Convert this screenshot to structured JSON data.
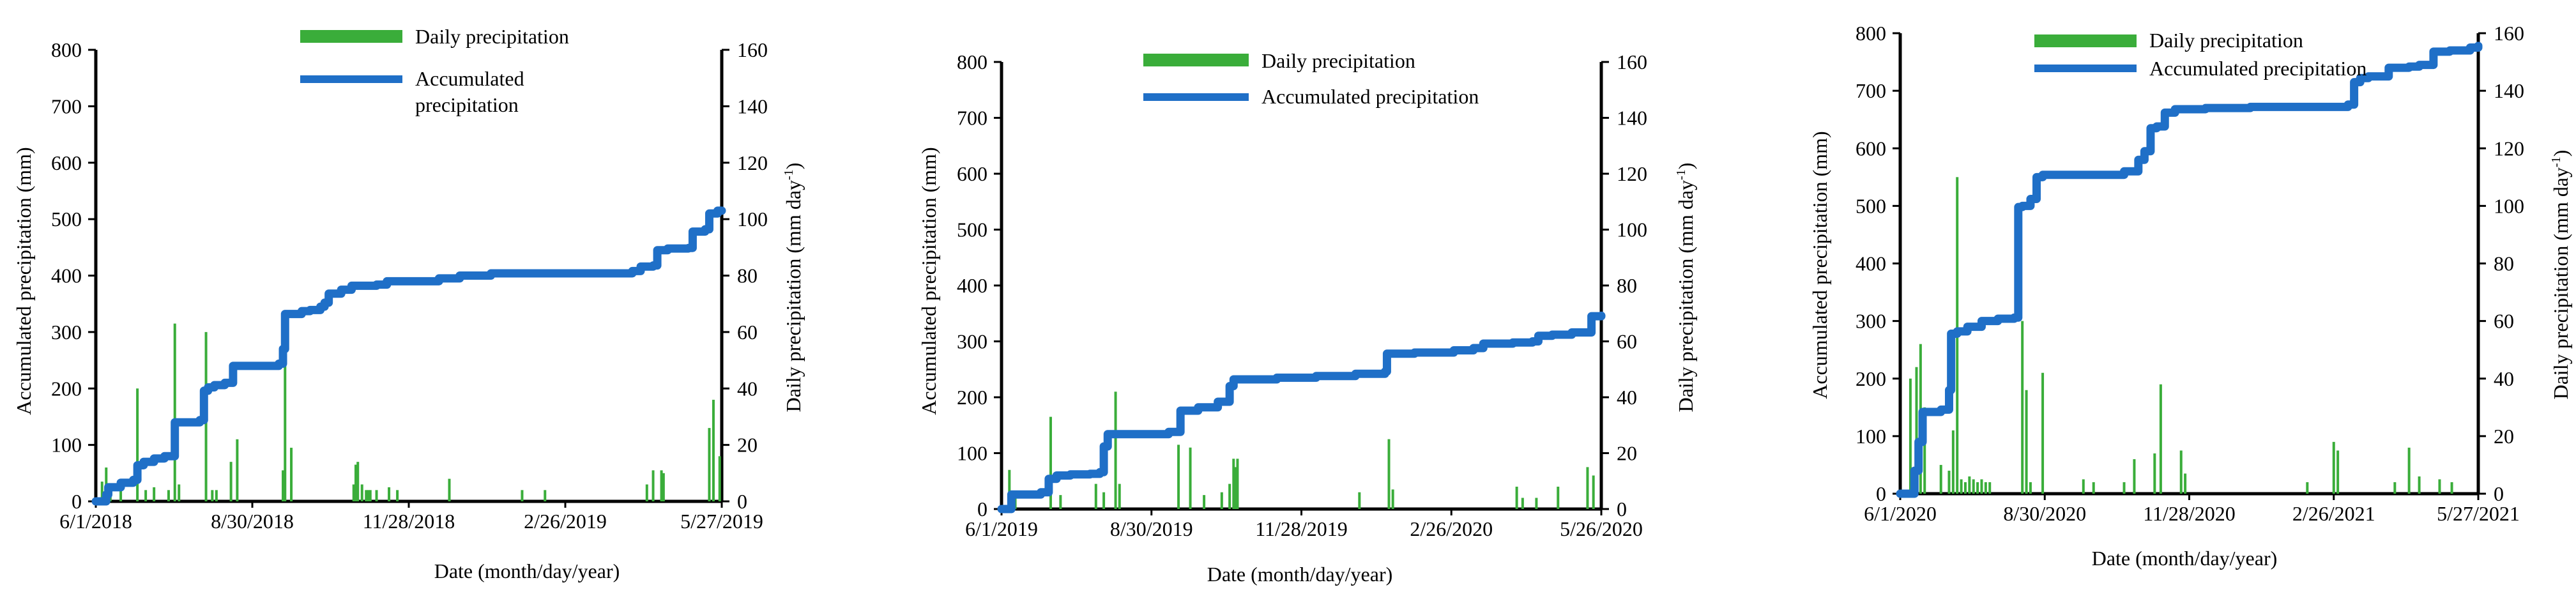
{
  "colors": {
    "precip": "#3aad3a",
    "accum": "#1f6fc7",
    "axis": "#000000"
  },
  "chart_data": [
    {
      "type": "bar+line",
      "xlabel": "Date  (month/day/year)",
      "ylabel_left": "Accumulated precipitation (mm)",
      "ylabel_right": "Daily precipitation (mm day",
      "ylabel_right_sup": "-1",
      "ylabel_right_close": ")",
      "legend": {
        "bar": "Daily precipitation",
        "line1": "Accumulated",
        "line2": "precipitation"
      },
      "x_ticks": [
        "6/1/2018",
        "8/30/2018",
        "11/28/2018",
        "2/26/2019",
        "5/27/2019"
      ],
      "ylim_left": [
        0,
        800
      ],
      "ylim_right": [
        0,
        160
      ],
      "yticks_left": [
        "0",
        "100",
        "200",
        "300",
        "400",
        "500",
        "600",
        "700",
        "800"
      ],
      "yticks_right": [
        "0",
        "20",
        "40",
        "60",
        "80",
        "100",
        "120",
        "140",
        "160"
      ],
      "daily": [
        [
          3,
          7
        ],
        [
          5,
          12
        ],
        [
          7,
          5
        ],
        [
          12,
          4
        ],
        [
          20,
          40
        ],
        [
          24,
          4
        ],
        [
          28,
          5
        ],
        [
          35,
          4
        ],
        [
          38,
          63
        ],
        [
          40,
          6
        ],
        [
          53,
          60
        ],
        [
          56,
          4
        ],
        [
          58,
          4
        ],
        [
          65,
          14
        ],
        [
          68,
          22
        ],
        [
          90,
          11
        ],
        [
          91,
          65
        ],
        [
          94,
          19
        ],
        [
          124,
          6
        ],
        [
          125,
          13
        ],
        [
          126,
          14
        ],
        [
          128,
          6
        ],
        [
          130,
          4
        ],
        [
          131,
          4
        ],
        [
          132,
          4
        ],
        [
          135,
          4
        ],
        [
          141,
          5
        ],
        [
          145,
          4
        ],
        [
          170,
          8
        ],
        [
          205,
          4
        ],
        [
          216,
          4
        ],
        [
          265,
          6
        ],
        [
          268,
          11
        ],
        [
          272,
          11
        ],
        [
          273,
          10
        ],
        [
          295,
          26
        ],
        [
          297,
          36
        ],
        [
          300,
          16
        ]
      ],
      "accum": [
        [
          0,
          0
        ],
        [
          5,
          12
        ],
        [
          6,
          25
        ],
        [
          12,
          33
        ],
        [
          18,
          38
        ],
        [
          20,
          64
        ],
        [
          23,
          70
        ],
        [
          28,
          76
        ],
        [
          33,
          80
        ],
        [
          38,
          140
        ],
        [
          50,
          144
        ],
        [
          52,
          196
        ],
        [
          54,
          202
        ],
        [
          57,
          206
        ],
        [
          62,
          210
        ],
        [
          66,
          240
        ],
        [
          88,
          244
        ],
        [
          90,
          270
        ],
        [
          91,
          332
        ],
        [
          99,
          337
        ],
        [
          103,
          339
        ],
        [
          108,
          345
        ],
        [
          110,
          352
        ],
        [
          112,
          368
        ],
        [
          118,
          375
        ],
        [
          123,
          382
        ],
        [
          135,
          384
        ],
        [
          140,
          390
        ],
        [
          165,
          395
        ],
        [
          175,
          400
        ],
        [
          190,
          404
        ],
        [
          258,
          408
        ],
        [
          262,
          416
        ],
        [
          268,
          418
        ],
        [
          270,
          445
        ],
        [
          275,
          448
        ],
        [
          285,
          449
        ],
        [
          287,
          478
        ],
        [
          293,
          482
        ],
        [
          295,
          510
        ],
        [
          299,
          515
        ],
        [
          301,
          515
        ]
      ]
    },
    {
      "type": "bar+line",
      "xlabel": "Date (month/day/year)",
      "ylabel_left": "Accumulated precipitation (mm)",
      "ylabel_right": "Daily precipitation (mm day",
      "ylabel_right_sup": "-1",
      "ylabel_right_close": ")",
      "legend": {
        "bar": "Daily precipitation",
        "line1": "Accumulated precipitation",
        "line2": ""
      },
      "x_ticks": [
        "6/1/2019",
        "8/30/2019",
        "11/28/2019",
        "2/26/2020",
        "5/26/2020"
      ],
      "ylim_left": [
        0,
        800
      ],
      "ylim_right": [
        0,
        160
      ],
      "yticks_left": [
        "0",
        "100",
        "200",
        "300",
        "400",
        "500",
        "600",
        "700",
        "800"
      ],
      "yticks_right": [
        "0",
        "20",
        "40",
        "60",
        "80",
        "100",
        "120",
        "140",
        "160"
      ],
      "daily": [
        [
          4,
          14
        ],
        [
          7,
          6
        ],
        [
          25,
          33
        ],
        [
          30,
          5
        ],
        [
          48,
          9
        ],
        [
          52,
          6
        ],
        [
          58,
          42
        ],
        [
          60,
          9
        ],
        [
          90,
          23
        ],
        [
          96,
          22
        ],
        [
          103,
          5
        ],
        [
          112,
          6
        ],
        [
          116,
          9
        ],
        [
          118,
          18
        ],
        [
          119,
          15
        ],
        [
          120,
          18
        ],
        [
          182,
          6
        ],
        [
          197,
          25
        ],
        [
          199,
          7
        ],
        [
          262,
          8
        ],
        [
          265,
          4
        ],
        [
          272,
          4
        ],
        [
          283,
          8
        ],
        [
          298,
          15
        ],
        [
          301,
          12
        ]
      ],
      "accum": [
        [
          0,
          0
        ],
        [
          5,
          26
        ],
        [
          20,
          30
        ],
        [
          24,
          54
        ],
        [
          28,
          60
        ],
        [
          35,
          62
        ],
        [
          45,
          63
        ],
        [
          50,
          66
        ],
        [
          52,
          112
        ],
        [
          54,
          134
        ],
        [
          85,
          138
        ],
        [
          91,
          176
        ],
        [
          100,
          182
        ],
        [
          110,
          192
        ],
        [
          116,
          220
        ],
        [
          118,
          232
        ],
        [
          140,
          235
        ],
        [
          160,
          238
        ],
        [
          170,
          238
        ],
        [
          180,
          242
        ],
        [
          195,
          246
        ],
        [
          196,
          278
        ],
        [
          210,
          280
        ],
        [
          230,
          284
        ],
        [
          240,
          288
        ],
        [
          245,
          296
        ],
        [
          260,
          298
        ],
        [
          270,
          300
        ],
        [
          273,
          310
        ],
        [
          280,
          312
        ],
        [
          290,
          316
        ],
        [
          300,
          345
        ],
        [
          305,
          346
        ]
      ]
    },
    {
      "type": "bar+line",
      "xlabel": "Date  (month/day/year)",
      "ylabel_left": "Accumulated precipitation (mm)",
      "ylabel_right": "Daily precipitation (mm day",
      "ylabel_right_sup": "-1",
      "ylabel_right_close": ")",
      "legend": {
        "bar": "Daily precipitation",
        "line1": "Accumulated precipitation",
        "line2": ""
      },
      "x_ticks": [
        "6/1/2020",
        "8/30/2020",
        "11/28/2020",
        "2/26/2021",
        "5/27/2021"
      ],
      "ylim_left": [
        0,
        800
      ],
      "ylim_right": [
        0,
        160
      ],
      "yticks_left": [
        "0",
        "100",
        "200",
        "300",
        "400",
        "500",
        "600",
        "700",
        "800"
      ],
      "yticks_right": [
        "0",
        "20",
        "40",
        "60",
        "80",
        "100",
        "120",
        "140",
        "160"
      ],
      "daily": [
        [
          5,
          40
        ],
        [
          8,
          44
        ],
        [
          10,
          52
        ],
        [
          12,
          30
        ],
        [
          20,
          10
        ],
        [
          24,
          8
        ],
        [
          26,
          22
        ],
        [
          28,
          110
        ],
        [
          30,
          5
        ],
        [
          32,
          4
        ],
        [
          34,
          6
        ],
        [
          36,
          5
        ],
        [
          38,
          4
        ],
        [
          40,
          5
        ],
        [
          42,
          4
        ],
        [
          44,
          4
        ],
        [
          60,
          60
        ],
        [
          62,
          36
        ],
        [
          64,
          4
        ],
        [
          70,
          42
        ],
        [
          90,
          5
        ],
        [
          95,
          4
        ],
        [
          110,
          4
        ],
        [
          115,
          12
        ],
        [
          125,
          14
        ],
        [
          128,
          38
        ],
        [
          138,
          15
        ],
        [
          140,
          7
        ],
        [
          200,
          4
        ],
        [
          213,
          18
        ],
        [
          215,
          15
        ],
        [
          243,
          4
        ],
        [
          250,
          16
        ],
        [
          255,
          6
        ],
        [
          265,
          5
        ],
        [
          271,
          4
        ]
      ],
      "accum": [
        [
          0,
          0
        ],
        [
          7,
          40
        ],
        [
          9,
          90
        ],
        [
          11,
          142
        ],
        [
          20,
          146
        ],
        [
          24,
          180
        ],
        [
          25,
          278
        ],
        [
          28,
          282
        ],
        [
          33,
          290
        ],
        [
          40,
          300
        ],
        [
          48,
          304
        ],
        [
          56,
          306
        ],
        [
          58,
          498
        ],
        [
          60,
          500
        ],
        [
          64,
          512
        ],
        [
          67,
          550
        ],
        [
          70,
          554
        ],
        [
          100,
          554
        ],
        [
          110,
          560
        ],
        [
          117,
          580
        ],
        [
          120,
          595
        ],
        [
          123,
          635
        ],
        [
          126,
          638
        ],
        [
          130,
          662
        ],
        [
          135,
          668
        ],
        [
          150,
          670
        ],
        [
          172,
          672
        ],
        [
          210,
          672
        ],
        [
          220,
          676
        ],
        [
          223,
          715
        ],
        [
          226,
          722
        ],
        [
          230,
          725
        ],
        [
          240,
          740
        ],
        [
          250,
          742
        ],
        [
          255,
          745
        ],
        [
          262,
          768
        ],
        [
          270,
          770
        ],
        [
          280,
          775
        ],
        [
          284,
          778
        ]
      ]
    }
  ]
}
